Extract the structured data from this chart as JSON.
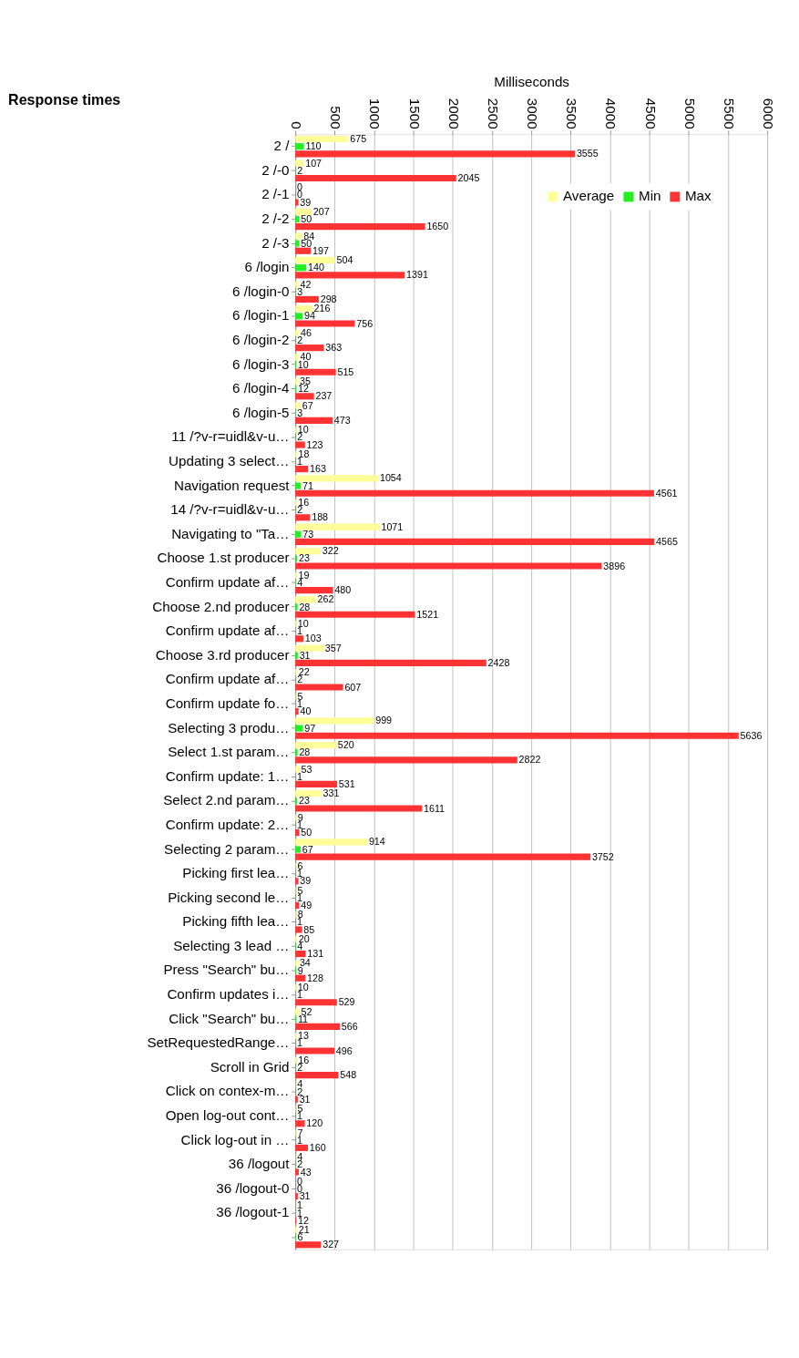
{
  "chart_data": {
    "type": "bar",
    "orientation": "horizontal",
    "title": "Response times",
    "xlabel": "Milliseconds",
    "categories": [
      "2 /",
      "2 /-0",
      "2 /-1",
      "2 /-2",
      "2 /-3",
      "6 /login",
      "6 /login-0",
      "6 /login-1",
      "6 /login-2",
      "6 /login-3",
      "6 /login-4",
      "6 /login-5",
      "11 /?v-r=uidl&v-u…",
      "Updating 3 select…",
      "Navigation request",
      "14 /?v-r=uidl&v-u…",
      "Navigating to \"Ta…",
      "Choose 1.st producer",
      "Confirm update af…",
      "Choose 2.nd producer",
      "Confirm update af…",
      "Choose 3.rd producer",
      "Confirm update af…",
      "Confirm update fo…",
      "Selecting 3 produ…",
      "Select 1.st param…",
      "Confirm update: 1…",
      "Select 2.nd param…",
      "Confirm update: 2…",
      "Selecting 2 param…",
      "Picking first lea…",
      "Picking second le…",
      "Picking fifth lea…",
      "Selecting 3 lead …",
      "Press \"Search\" bu…",
      "Confirm updates i…",
      "Click \"Search\" bu…",
      "SetRequestedRange…",
      "Scroll in Grid",
      "Click on contex-m…",
      "Open log-out cont…",
      "Click log-out in …",
      "36 /logout",
      "36 /logout-0",
      "36 /logout-1",
      null
    ],
    "series": [
      {
        "name": "Average",
        "color": "#ffff99",
        "values": [
          675,
          107,
          0,
          207,
          84,
          504,
          42,
          216,
          46,
          40,
          35,
          67,
          10,
          18,
          1054,
          16,
          1071,
          322,
          19,
          262,
          10,
          357,
          22,
          5,
          999,
          520,
          53,
          331,
          9,
          914,
          6,
          5,
          8,
          20,
          34,
          10,
          52,
          13,
          16,
          4,
          5,
          7,
          4,
          0,
          1,
          21
        ]
      },
      {
        "name": "Min",
        "color": "#22ee22",
        "values": [
          110,
          2,
          0,
          50,
          50,
          140,
          3,
          94,
          2,
          10,
          12,
          3,
          2,
          1,
          71,
          2,
          73,
          23,
          4,
          28,
          1,
          31,
          2,
          1,
          97,
          28,
          1,
          23,
          1,
          67,
          1,
          1,
          1,
          4,
          9,
          1,
          11,
          1,
          2,
          2,
          1,
          1,
          2,
          0,
          1,
          6
        ]
      },
      {
        "name": "Max",
        "color": "#ff3333",
        "values": [
          3555,
          2045,
          39,
          1650,
          197,
          1391,
          298,
          756,
          363,
          515,
          237,
          473,
          123,
          163,
          4561,
          188,
          4565,
          3896,
          480,
          1521,
          103,
          2428,
          607,
          40,
          5636,
          2822,
          531,
          1611,
          50,
          3752,
          39,
          49,
          85,
          131,
          128,
          529,
          566,
          496,
          548,
          31,
          120,
          160,
          43,
          31,
          12,
          327
        ]
      }
    ],
    "xlim": [
      0,
      6000
    ],
    "xticks": [
      0,
      500,
      1000,
      1500,
      2000,
      2500,
      3000,
      3500,
      4000,
      4500,
      5000,
      5500,
      6000
    ],
    "grid": "x",
    "legend": "top right",
    "data_labels": true
  }
}
